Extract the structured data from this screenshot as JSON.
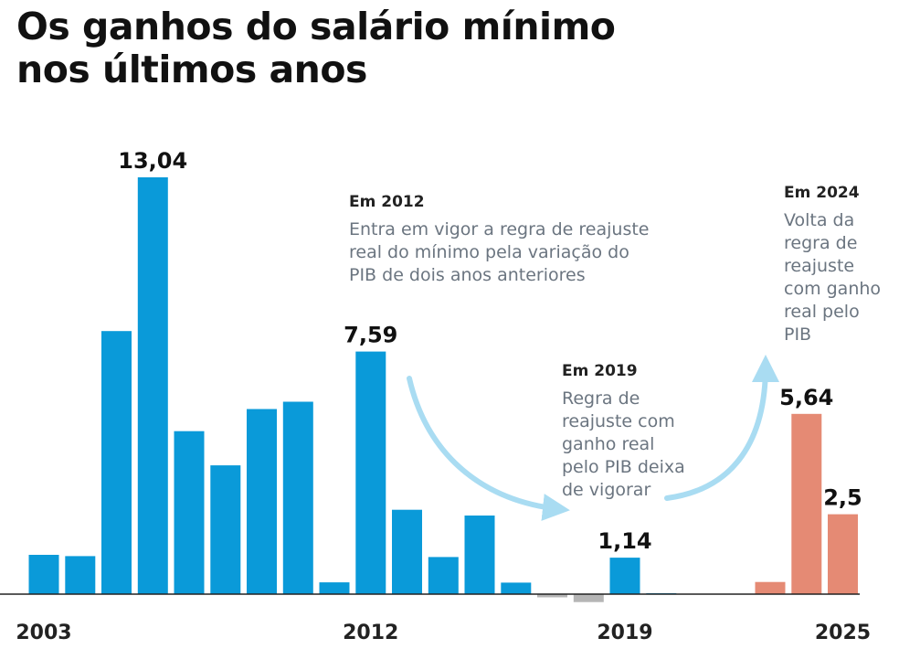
{
  "title_line1": "Os ganhos do salário mínimo",
  "title_line2": "nos últimos anos",
  "chart_data": {
    "type": "bar",
    "categories": [
      "2003",
      "2004",
      "2005",
      "2006",
      "2007",
      "2008",
      "2009",
      "2010",
      "2011",
      "2012",
      "2013",
      "2014",
      "2015",
      "2016",
      "2017",
      "2018",
      "2019",
      "2020",
      "2021",
      "2022",
      "2023",
      "2024",
      "2025"
    ],
    "values": [
      1.23,
      1.19,
      8.23,
      13.04,
      5.1,
      4.03,
      5.79,
      6.02,
      0.37,
      7.59,
      2.64,
      1.16,
      2.46,
      0.36,
      -0.1,
      -0.25,
      1.14,
      0.03,
      0.0,
      0.0,
      0.38,
      5.64,
      2.5
    ],
    "ylim": [
      -0.3,
      13.04
    ],
    "x_tick_labels": [
      "2003",
      "2012",
      "2019",
      "2025"
    ],
    "data_labels": [
      {
        "category": "2006",
        "text": "13,04"
      },
      {
        "category": "2012",
        "text": "7,59"
      },
      {
        "category": "2019",
        "text": "1,14"
      },
      {
        "category": "2024",
        "text": "5,64"
      },
      {
        "category": "2025",
        "text": "2,5"
      }
    ],
    "colors": {
      "default": "#0a9ad9",
      "negative": "#b5b5b5",
      "highlight": "#e58a74",
      "arrow": "#a9dcf2"
    },
    "highlight_categories": [
      "2023",
      "2024",
      "2025"
    ],
    "annotations": [
      {
        "head": "Em 2012",
        "lines": [
          "Entra em vigor a regra de reajuste",
          "real do mínimo pela variação do",
          "PIB de dois anos anteriores"
        ]
      },
      {
        "head": "Em 2019",
        "lines": [
          "Regra de",
          "reajuste com",
          "ganho real",
          "pelo PIB deixa",
          "de vigorar"
        ]
      },
      {
        "head": "Em 2024",
        "lines": [
          "Volta da",
          "regra de",
          "reajuste",
          "com ganho",
          "real pelo",
          "PIB"
        ]
      }
    ]
  }
}
